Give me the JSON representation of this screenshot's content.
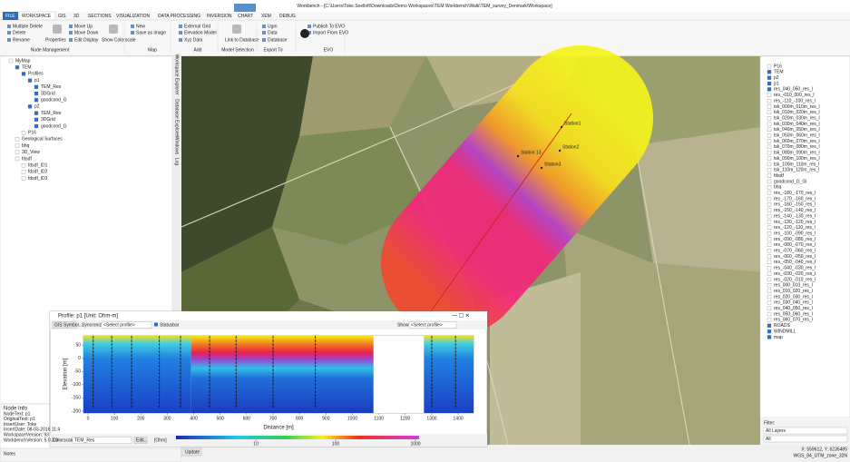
{
  "window": {
    "title": "Workbench - [C:\\Users\\Toke.Soelloft\\Downloads\\Demo Workspaces\\TEM Workbench\\Walk\\TEM_survey_Denmark\\Workspace]"
  },
  "ribbon": {
    "tabs": [
      "FILE",
      "WORKSPACE",
      "GIS",
      "3D",
      "SECTIONS",
      "VISUALIZATION",
      "DATA PROCESSING",
      "INVERSION",
      "CHART",
      "XEM",
      "DEBUG"
    ],
    "groups": [
      {
        "label": "Node Management",
        "items": [
          "Multiple Delete",
          "Delete",
          "Rename",
          "Properties",
          "Move Up",
          "Move Down",
          "Edit Display",
          "Show Colorscale"
        ]
      },
      {
        "label": "Map",
        "items": [
          "New",
          "Save as image"
        ]
      },
      {
        "label": "Add",
        "items": [
          "External Grid",
          "Elevation Model",
          "Xyz Data"
        ]
      },
      {
        "label": "Model Selection",
        "items": [
          "Link to Database"
        ]
      },
      {
        "label": "Export To",
        "items": [
          "Ugm",
          "Data",
          "Database"
        ]
      },
      {
        "label": "EVO",
        "items": [
          "Publish To EVO",
          "Import From EVO"
        ]
      }
    ]
  },
  "tree": [
    "MyMap",
    "TEM",
    "Profiles",
    "p1",
    "TEM_Res",
    "3DGrid",
    "goodcond_G",
    "p2",
    "TEM_Res",
    "3DGrid",
    "goodcond_G",
    "P16",
    "Geological Surfaces",
    "bhq",
    "3D_View",
    "fdsdf",
    "fdsdf_ID1",
    "fdsdf_ID2",
    "fdsdf_ID3"
  ],
  "side_tabs": [
    "Workspace Explorer",
    "Database Explorer",
    "Windows",
    "Log"
  ],
  "node_info": {
    "title": "Node Info",
    "lines": [
      "NodeText: p1",
      "OriginalText: p1",
      "InsertUser: Toke",
      "InsertDate: 08-03-2016 11:4",
      "WorkspaceVersion: 93",
      "WorkbenchVersion: 5.0.3.0"
    ]
  },
  "notes": "Notes",
  "map": {
    "stations": [
      "Station1",
      "Station2",
      "Station3",
      "Station 13"
    ]
  },
  "layers": [
    "P16",
    "TEM",
    "p2",
    "p1",
    "res_040_050_res_l",
    "res_-010_000_res_l",
    "res_-110_-100_res_l",
    "tsk_000m_010m_res_l",
    "tsk_010m_020m_res_l",
    "tsk_020m_030m_res_l",
    "tsk_030m_040m_res_l",
    "tsk_040m_050m_res_l",
    "tsk_050m_060m_res_l",
    "tsk_060m_070m_res_l",
    "tsk_070m_080m_res_l",
    "tsk_080m_090m_res_l",
    "tsk_090m_100m_res_l",
    "tsk_100m_110m_res_l",
    "tsk_110m_120m_res_l",
    "fdsdf",
    "goodcond_G_Gl",
    "bhq",
    "res_-180_-170_res_l",
    "res_-170_-160_res_l",
    "res_-160_-150_res_l",
    "res_-150_-140_res_l",
    "res_-140_-130_res_l",
    "res_-130_-120_res_l",
    "res_-120_-110_res_l",
    "res_-100_-090_res_l",
    "res_-090_-080_res_l",
    "res_-080_-070_res_l",
    "res_-070_-060_res_l",
    "res_-060_-050_res_l",
    "res_-050_-040_res_l",
    "res_-040_-030_res_l",
    "res_-030_-020_res_l",
    "res_-020_-010_res_l",
    "res_000_010_res_l",
    "res_010_020_res_l",
    "res_020_030_res_l",
    "res_030_040_res_l",
    "res_040_050_res_l",
    "res_050_060_res_l",
    "res_060_070_res_l",
    "ROADS",
    "WINDMILL",
    "map"
  ],
  "layer_filter": {
    "label": "Filter:",
    "layers": "All Layers",
    "all": "All"
  },
  "status": {
    "coords": "X: 559612, Y: 6235485",
    "crs": "WGS_84_UTM_zone_32N"
  },
  "profile": {
    "title": "Profile: p1 [Unit: Ohm-m]",
    "gis_button": "GIS Symbol...",
    "sync_label": "Syncronize",
    "sync_select": "<Select profile>",
    "statusbar": "Statusbar",
    "show_label": "Show",
    "show_select": "<Select profile>",
    "y_label": "Elevation [m]",
    "x_label": "Distance [m]",
    "ylim": [
      -207,
      85
    ],
    "xlim": [
      -17,
      1458
    ],
    "yticks": [
      50,
      0,
      -50,
      -100,
      -150,
      -200
    ],
    "xticks": [
      0,
      100,
      200,
      300,
      400,
      500,
      600,
      700,
      800,
      900,
      1000,
      1100,
      1200,
      1300,
      1400
    ],
    "colorscale_label": "Colorscale",
    "colorscale": "TEM_Res",
    "edit": "Edit...",
    "unit": "[Ohm]",
    "colorbar_ticks": [
      10,
      100,
      1000
    ],
    "update": "Update"
  }
}
